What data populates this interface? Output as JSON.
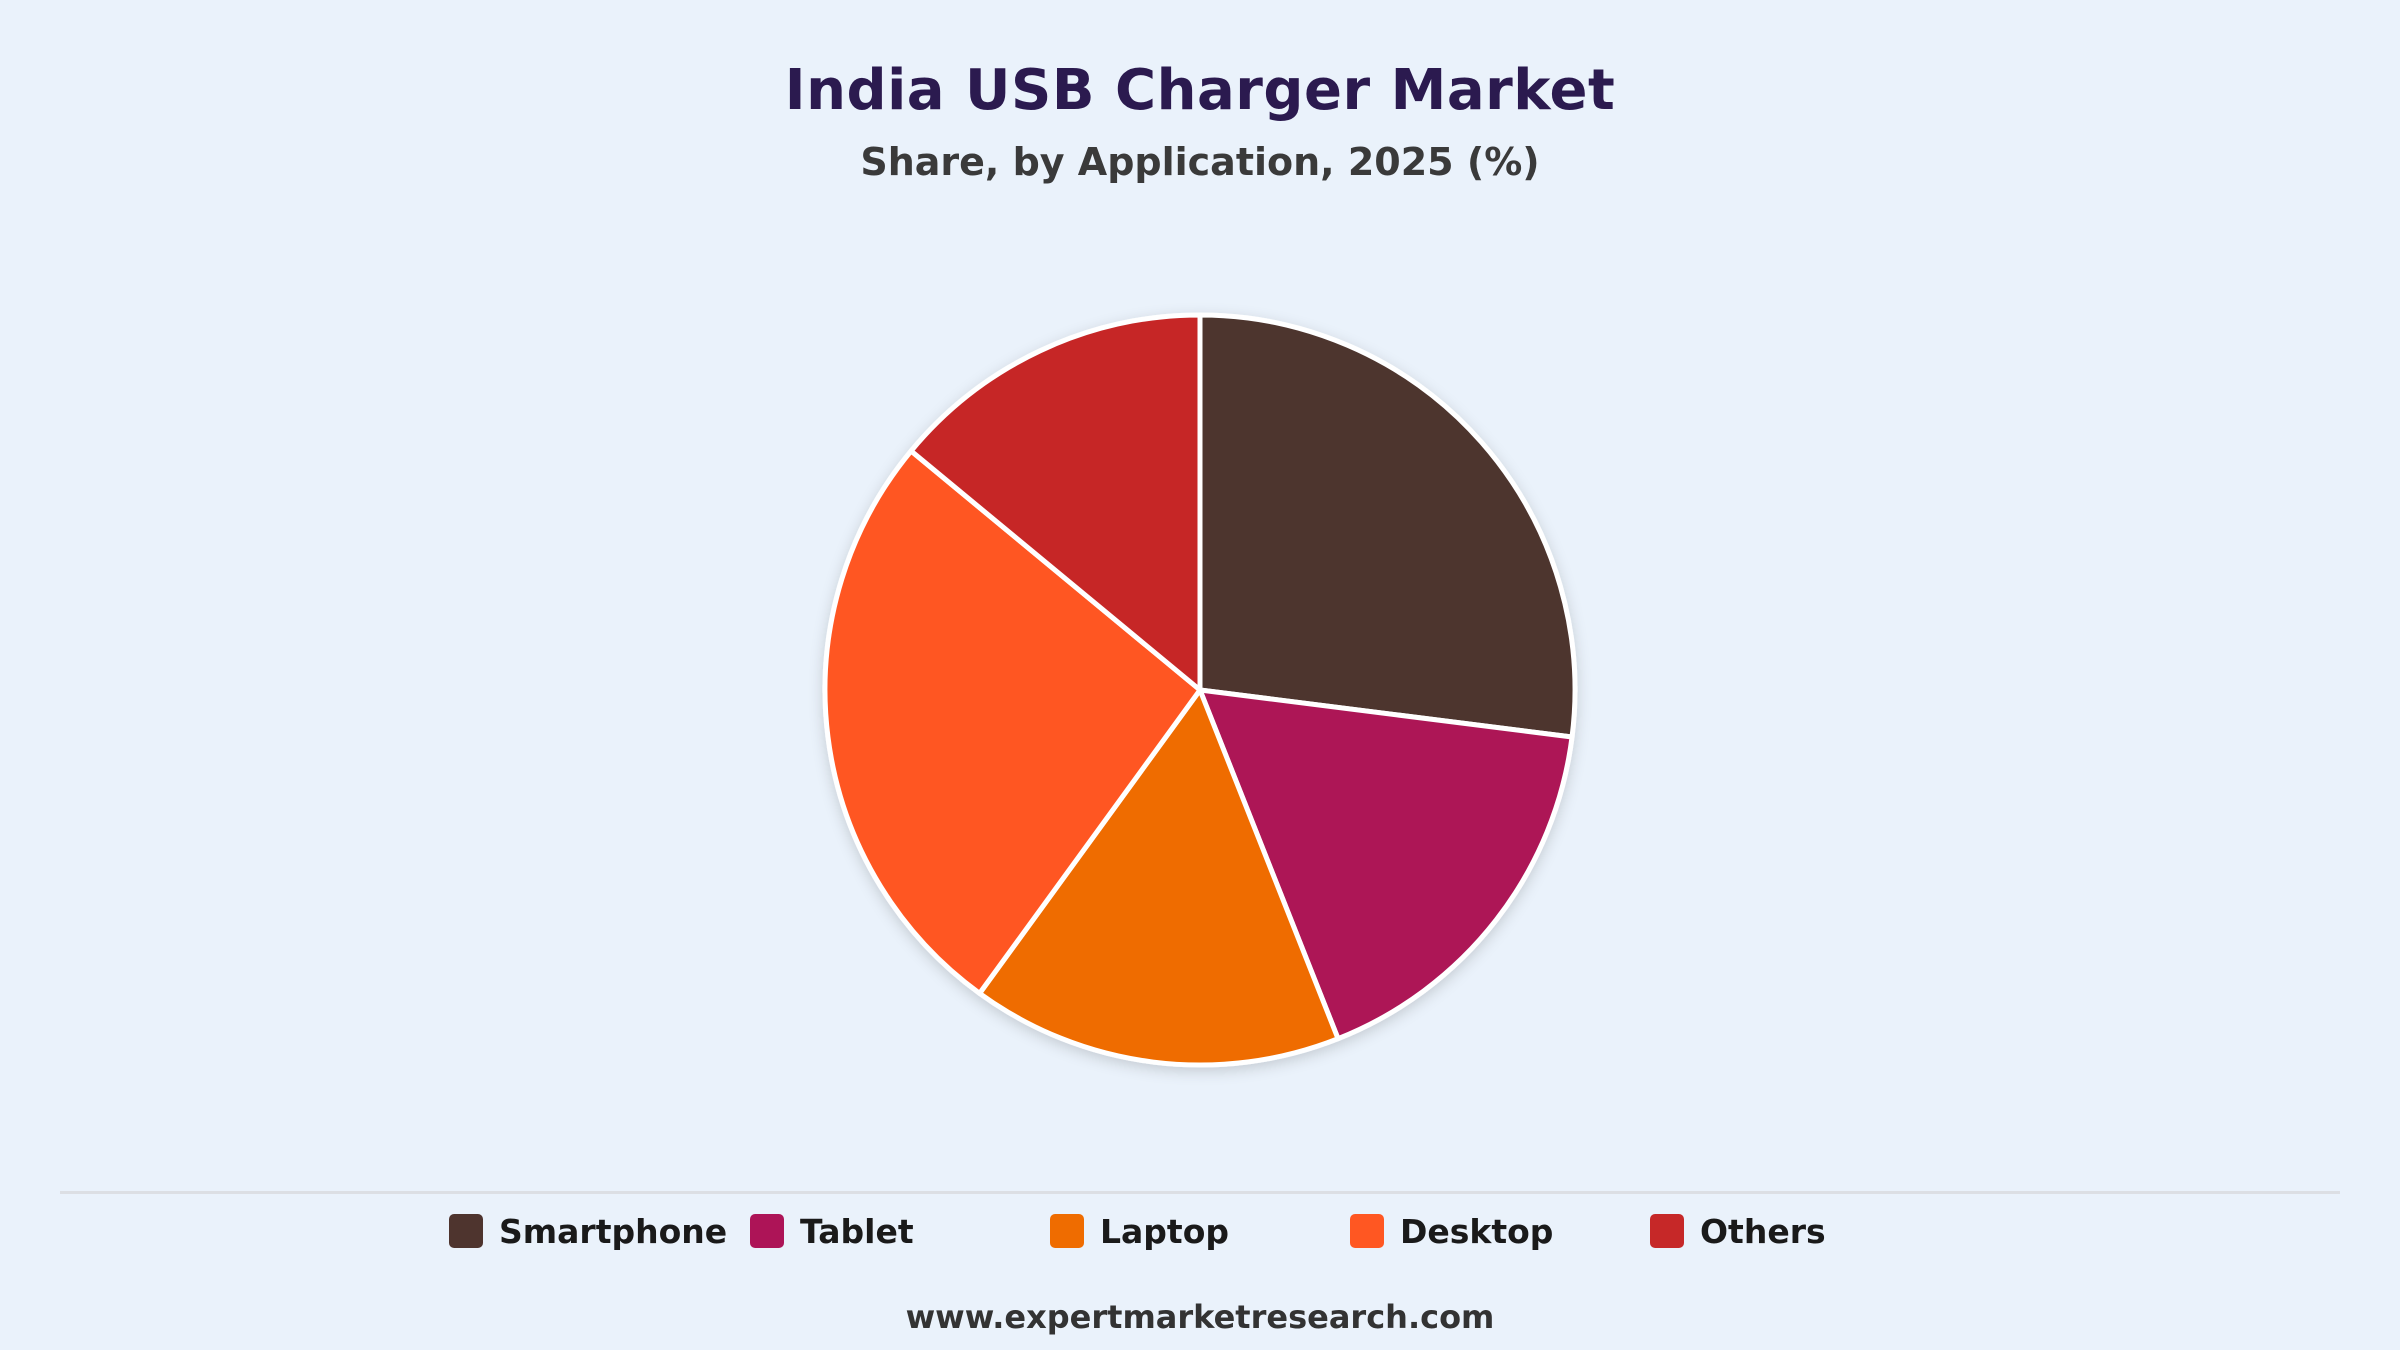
{
  "header": {
    "title": "India USB Charger Market",
    "subtitle": "Share, by Application, 2025 (%)"
  },
  "legend": {
    "items": [
      {
        "label": "Smartphone",
        "color": "#4e342e"
      },
      {
        "label": "Tablet",
        "color": "#ad1457"
      },
      {
        "label": "Laptop",
        "color": "#ef6c00"
      },
      {
        "label": "Desktop",
        "color": "#ff5722"
      },
      {
        "label": "Others",
        "color": "#c62828"
      }
    ]
  },
  "footer": {
    "source": "www.expertmarketresearch.com"
  },
  "chart_data": {
    "type": "pie",
    "title": "India USB Charger Market",
    "subtitle": "Share, by Application, 2025 (%)",
    "categories": [
      "Smartphone",
      "Tablet",
      "Laptop",
      "Desktop",
      "Others"
    ],
    "values": [
      27,
      17,
      16,
      26,
      14
    ],
    "colors": [
      "#4e342e",
      "#ad1457",
      "#ef6c00",
      "#ff5722",
      "#c62828"
    ],
    "start_angle": "12 o'clock",
    "direction": "clockwise",
    "legend_position": "bottom"
  }
}
